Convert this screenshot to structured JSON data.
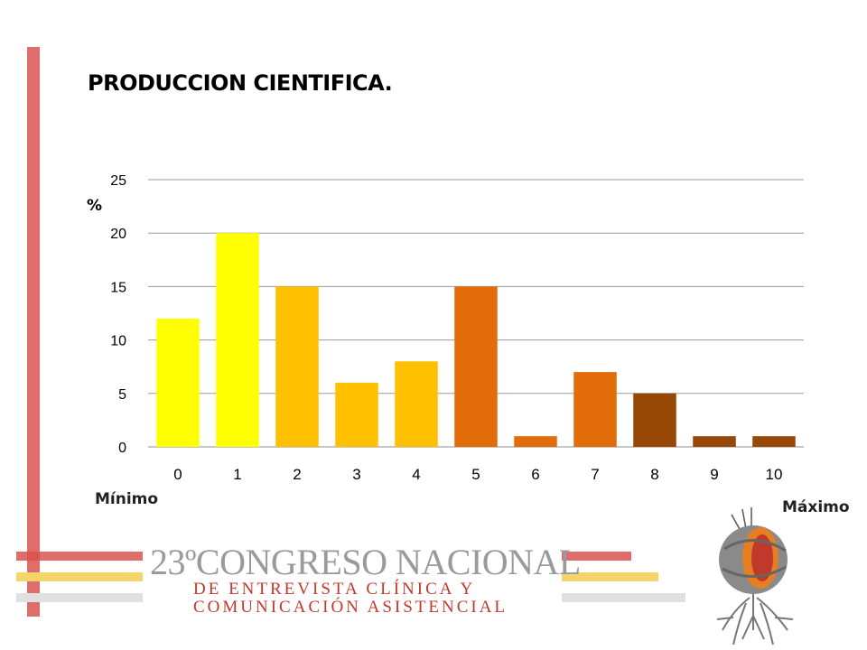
{
  "slide": {
    "title": "PRODUCCION CIENTIFICA.",
    "unit_label": "%",
    "min_label": "Mínimo",
    "max_label": "Máximo"
  },
  "logo": {
    "line1": "23ºCONGRESO NACIONAL",
    "line2": "DE ENTREVISTA CLÍNICA Y",
    "line3": "COMUNICACIÓN ASISTENCIAL"
  },
  "colors": {
    "accent_red": "#d9534f",
    "accent_yellow": "#f5d46b",
    "accent_grey": "#e0e0e0"
  },
  "chart_data": {
    "type": "bar",
    "categories": [
      "0",
      "1",
      "2",
      "3",
      "4",
      "5",
      "6",
      "7",
      "8",
      "9",
      "10"
    ],
    "values": [
      12,
      20,
      15,
      6,
      8,
      15,
      1,
      7,
      5,
      1,
      1
    ],
    "colors": [
      "#ffff00",
      "#ffff00",
      "#ffc000",
      "#ffc000",
      "#ffc000",
      "#e36c0a",
      "#e36c0a",
      "#e36c0a",
      "#974806",
      "#974806",
      "#974806"
    ],
    "ylim": [
      0,
      25
    ],
    "yticks": [
      0,
      5,
      10,
      15,
      20,
      25
    ],
    "ylabel": "%",
    "grid": true,
    "legend": "none"
  }
}
